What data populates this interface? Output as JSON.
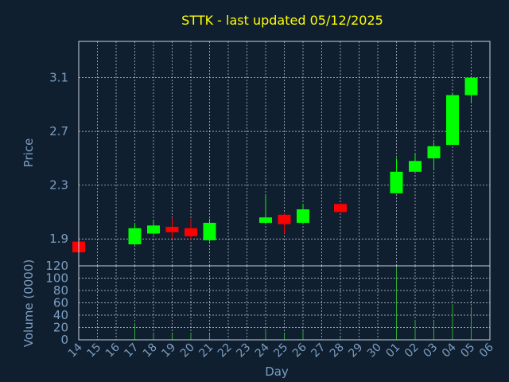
{
  "chart_data": {
    "type": "candlestick",
    "title": "STTK - last updated 05/12/2025",
    "xlabel": "Day",
    "ylabel_price": "Price",
    "ylabel_volume": "Volume (0000)",
    "grid": true,
    "price_ylim": [
      1.7,
      3.37
    ],
    "price_ticks": [
      "1.9",
      "2.3",
      "2.7",
      "3.1"
    ],
    "volume_ylim": [
      0,
      120
    ],
    "volume_ticks": [
      "0",
      "20",
      "40",
      "60",
      "80",
      "100",
      "120"
    ],
    "days": [
      "14",
      "15",
      "16",
      "17",
      "18",
      "19",
      "20",
      "21",
      "22",
      "23",
      "24",
      "25",
      "26",
      "27",
      "28",
      "29",
      "30",
      "01",
      "02",
      "03",
      "04",
      "05",
      "06"
    ],
    "candles": [
      {
        "day": "14",
        "open": 1.88,
        "high": 1.88,
        "low": 1.8,
        "close": 1.8,
        "volume": 0
      },
      {
        "day": "17",
        "open": 1.86,
        "high": 2.02,
        "low": 1.85,
        "close": 1.98,
        "volume": 27
      },
      {
        "day": "18",
        "open": 1.94,
        "high": 2.04,
        "low": 1.93,
        "close": 2.0,
        "volume": 12
      },
      {
        "day": "19",
        "open": 1.99,
        "high": 2.06,
        "low": 1.9,
        "close": 1.95,
        "volume": 10
      },
      {
        "day": "20",
        "open": 1.98,
        "high": 2.05,
        "low": 1.89,
        "close": 1.92,
        "volume": 12
      },
      {
        "day": "21",
        "open": 1.89,
        "high": 2.05,
        "low": 1.88,
        "close": 2.02,
        "volume": 9
      },
      {
        "day": "24",
        "open": 2.02,
        "high": 2.23,
        "low": 2.01,
        "close": 2.06,
        "volume": 18
      },
      {
        "day": "25",
        "open": 2.08,
        "high": 2.09,
        "low": 1.94,
        "close": 2.01,
        "volume": 11
      },
      {
        "day": "26",
        "open": 2.02,
        "high": 2.16,
        "low": 2.02,
        "close": 2.12,
        "volume": 14
      },
      {
        "day": "28",
        "open": 2.16,
        "high": 2.16,
        "low": 2.1,
        "close": 2.1,
        "volume": 3
      },
      {
        "day": "01",
        "open": 2.24,
        "high": 2.5,
        "low": 2.24,
        "close": 2.4,
        "volume": 117
      },
      {
        "day": "02",
        "open": 2.4,
        "high": 2.53,
        "low": 2.4,
        "close": 2.48,
        "volume": 32
      },
      {
        "day": "03",
        "open": 2.5,
        "high": 2.62,
        "low": 2.42,
        "close": 2.59,
        "volume": 31
      },
      {
        "day": "04",
        "open": 2.6,
        "high": 2.98,
        "low": 2.6,
        "close": 2.97,
        "volume": 58
      },
      {
        "day": "05",
        "open": 2.97,
        "high": 3.1,
        "low": 2.91,
        "close": 3.1,
        "volume": 52
      }
    ],
    "colors": {
      "background": "#0f1f30",
      "title": "#ffff00",
      "axis_text": "#7d9ec0",
      "grid": "#c8d2dc",
      "up": "#00ff00",
      "down": "#ff0000",
      "volume": "#33aa33"
    }
  }
}
